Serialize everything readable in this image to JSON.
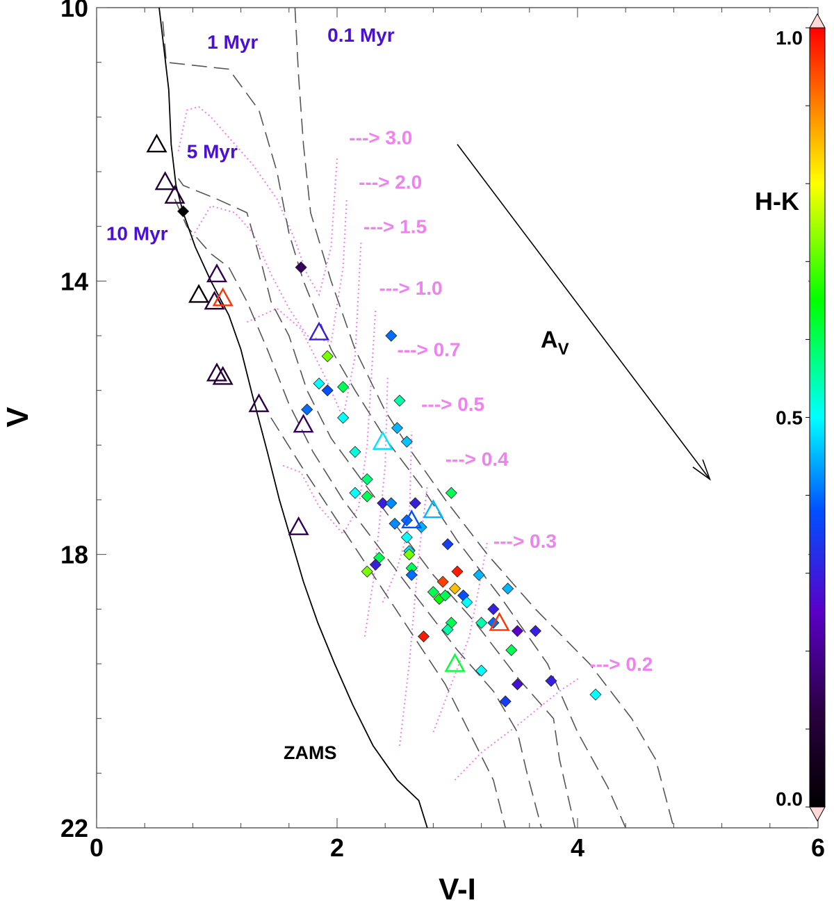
{
  "chart_data": {
    "type": "scatter",
    "title": "",
    "xlabel": "V-I",
    "ylabel": "V",
    "xlim": [
      0,
      6
    ],
    "ylim": [
      22,
      10
    ],
    "x_ticks": [
      0,
      2,
      4,
      6
    ],
    "x_tick_labels": [
      "0",
      "2",
      "4",
      "6"
    ],
    "y_ticks": [
      10,
      14,
      18,
      22
    ],
    "y_tick_labels": [
      "10",
      "14",
      "18",
      "22"
    ],
    "colorbar": {
      "label": "H-K",
      "range": [
        0.0,
        1.0
      ],
      "tick_labels": [
        "0.0",
        "0.5",
        "1.0"
      ],
      "ticks": [
        0.0,
        0.5,
        1.0
      ]
    },
    "zams_label": "ZAMS",
    "av_label": "A",
    "av_subscript": "V",
    "reddening_vector": {
      "from": [
        3.0,
        12.0
      ],
      "to": [
        5.1,
        16.9
      ]
    },
    "zams": [
      [
        0.52,
        10.0
      ],
      [
        0.6,
        11.2
      ],
      [
        0.62,
        12.0
      ],
      [
        0.66,
        12.6
      ],
      [
        0.72,
        13.0
      ],
      [
        0.82,
        13.5
      ],
      [
        0.95,
        14.0
      ],
      [
        1.1,
        14.5
      ],
      [
        1.2,
        15.0
      ],
      [
        1.3,
        15.7
      ],
      [
        1.42,
        16.5
      ],
      [
        1.52,
        17.2
      ],
      [
        1.62,
        17.8
      ],
      [
        1.72,
        18.4
      ],
      [
        1.84,
        19.0
      ],
      [
        1.98,
        19.6
      ],
      [
        2.13,
        20.2
      ],
      [
        2.3,
        20.8
      ],
      [
        2.5,
        21.3
      ],
      [
        2.68,
        21.6
      ],
      [
        2.75,
        22.0
      ]
    ],
    "isochrones": [
      {
        "label": "0.1 Myr",
        "points": [
          [
            1.65,
            10.0
          ],
          [
            1.68,
            11.0
          ],
          [
            1.72,
            12.0
          ],
          [
            1.78,
            13.0
          ],
          [
            1.95,
            14.0
          ],
          [
            2.15,
            15.0
          ],
          [
            2.4,
            15.9
          ],
          [
            2.62,
            16.5
          ],
          [
            2.9,
            17.2
          ],
          [
            3.25,
            18.0
          ],
          [
            3.65,
            18.8
          ],
          [
            4.1,
            19.6
          ],
          [
            4.45,
            20.4
          ],
          [
            4.65,
            21.0
          ],
          [
            4.8,
            22.0
          ]
        ]
      },
      {
        "label": "1 Myr",
        "points": [
          [
            0.55,
            10.2
          ],
          [
            0.58,
            10.8
          ],
          [
            1.1,
            10.9
          ],
          [
            1.35,
            11.5
          ],
          [
            1.5,
            12.4
          ],
          [
            1.6,
            13.3
          ],
          [
            1.72,
            14.0
          ],
          [
            1.95,
            15.0
          ],
          [
            2.15,
            15.6
          ],
          [
            2.4,
            16.3
          ],
          [
            2.7,
            17.0
          ],
          [
            3.0,
            17.8
          ],
          [
            3.35,
            18.6
          ],
          [
            3.75,
            19.6
          ],
          [
            4.0,
            20.6
          ],
          [
            4.25,
            21.4
          ],
          [
            4.4,
            22.0
          ]
        ]
      },
      {
        "label": "5 Myr",
        "points": [
          [
            0.68,
            12.5
          ],
          [
            0.72,
            12.6
          ],
          [
            1.0,
            12.8
          ],
          [
            1.25,
            13.0
          ],
          [
            1.38,
            13.8
          ],
          [
            1.45,
            14.3
          ],
          [
            1.6,
            14.8
          ],
          [
            1.75,
            15.6
          ],
          [
            1.95,
            16.3
          ],
          [
            2.2,
            16.9
          ],
          [
            2.5,
            17.6
          ],
          [
            2.8,
            18.3
          ],
          [
            3.15,
            19.0
          ],
          [
            3.5,
            19.8
          ],
          [
            3.8,
            20.4
          ],
          [
            3.85,
            21.0
          ],
          [
            3.98,
            22.0
          ]
        ]
      },
      {
        "label": "10 Myr",
        "points": [
          [
            0.65,
            12.8
          ],
          [
            0.75,
            13.2
          ],
          [
            0.95,
            13.6
          ],
          [
            1.1,
            13.8
          ],
          [
            1.25,
            14.3
          ],
          [
            1.42,
            15.0
          ],
          [
            1.6,
            15.8
          ],
          [
            1.8,
            16.5
          ],
          [
            2.05,
            17.2
          ],
          [
            2.35,
            17.9
          ],
          [
            2.65,
            18.6
          ],
          [
            3.0,
            19.4
          ],
          [
            3.3,
            20.0
          ],
          [
            3.5,
            20.6
          ],
          [
            3.58,
            21.2
          ],
          [
            3.7,
            22.0
          ]
        ]
      },
      {
        "label": "",
        "points": [
          [
            1.45,
            16.0
          ],
          [
            1.7,
            16.7
          ],
          [
            2.0,
            17.5
          ],
          [
            2.3,
            18.3
          ],
          [
            2.6,
            19.1
          ],
          [
            2.9,
            19.9
          ],
          [
            3.1,
            20.6
          ],
          [
            3.3,
            21.3
          ],
          [
            3.4,
            22.0
          ]
        ]
      }
    ],
    "isochrone_labels": [
      {
        "text": "0.1 Myr",
        "x": 1.92,
        "y": 10.5
      },
      {
        "text": "1 Myr",
        "x": 0.92,
        "y": 10.6
      },
      {
        "text": "5 Myr",
        "x": 0.75,
        "y": 12.2
      },
      {
        "text": "10 Myr",
        "x": 0.08,
        "y": 13.4
      }
    ],
    "mass_tracks": [
      {
        "label": "---> 3.0",
        "x": 2.1,
        "y": 12.0
      },
      {
        "label": "---> 2.0",
        "x": 2.18,
        "y": 12.65
      },
      {
        "label": "---> 1.5",
        "x": 2.22,
        "y": 13.3
      },
      {
        "label": "---> 1.0",
        "x": 2.35,
        "y": 14.2
      },
      {
        "label": "---> 0.7",
        "x": 2.5,
        "y": 15.1
      },
      {
        "label": "---> 0.5",
        "x": 2.7,
        "y": 15.9
      },
      {
        "label": "---> 0.4",
        "x": 2.9,
        "y": 16.7
      },
      {
        "label": "---> 0.3",
        "x": 3.3,
        "y": 17.9
      },
      {
        "label": "---> 0.2",
        "x": 4.1,
        "y": 19.7
      }
    ],
    "mass_track_lines": [
      [
        [
          0.68,
          12.1
        ],
        [
          0.75,
          11.5
        ],
        [
          0.85,
          11.45
        ],
        [
          0.95,
          11.6
        ],
        [
          1.1,
          11.9
        ],
        [
          1.3,
          12.3
        ],
        [
          1.5,
          12.8
        ],
        [
          1.65,
          13.4
        ],
        [
          1.75,
          13.9
        ],
        [
          1.85,
          14.2
        ],
        [
          1.95,
          13.5
        ],
        [
          2.0,
          12.2
        ]
      ],
      [
        [
          0.78,
          13.4
        ],
        [
          0.95,
          12.9
        ],
        [
          1.15,
          13.0
        ],
        [
          1.3,
          13.3
        ],
        [
          1.45,
          13.9
        ],
        [
          1.6,
          14.4
        ],
        [
          1.75,
          14.8
        ],
        [
          1.95,
          14.9
        ],
        [
          2.05,
          13.8
        ],
        [
          2.08,
          12.8
        ]
      ],
      [
        [
          1.25,
          14.6
        ],
        [
          1.5,
          14.4
        ],
        [
          1.7,
          14.7
        ],
        [
          1.9,
          15.4
        ],
        [
          2.05,
          16.0
        ],
        [
          2.15,
          15.1
        ],
        [
          2.2,
          13.4
        ]
      ],
      [
        [
          1.55,
          16.7
        ],
        [
          1.7,
          16.8
        ],
        [
          1.85,
          17.3
        ],
        [
          2.05,
          17.7
        ],
        [
          2.18,
          17.3
        ],
        [
          2.25,
          16.4
        ],
        [
          2.32,
          14.4
        ]
      ],
      [
        [
          2.23,
          19.2
        ],
        [
          2.3,
          18.4
        ],
        [
          2.35,
          17.6
        ],
        [
          2.4,
          16.7
        ],
        [
          2.42,
          15.4
        ]
      ],
      [
        [
          2.38,
          18.7
        ],
        [
          2.5,
          18.2
        ],
        [
          2.6,
          17.6
        ],
        [
          2.62,
          16.2
        ]
      ],
      [
        [
          2.52,
          20.8
        ],
        [
          2.6,
          19.6
        ],
        [
          2.68,
          18.0
        ],
        [
          2.75,
          17.0
        ]
      ],
      [
        [
          2.8,
          20.6
        ],
        [
          2.95,
          19.9
        ],
        [
          3.1,
          19.2
        ],
        [
          3.2,
          18.3
        ],
        [
          3.25,
          17.8
        ]
      ],
      [
        [
          2.98,
          21.3
        ],
        [
          3.2,
          20.9
        ],
        [
          3.5,
          20.5
        ],
        [
          3.85,
          20.0
        ],
        [
          4.02,
          19.8
        ]
      ]
    ],
    "diamonds": [
      [
        0.72,
        12.98,
        0.0
      ],
      [
        1.7,
        13.8,
        0.15
      ],
      [
        2.45,
        14.8,
        0.4
      ],
      [
        1.92,
        15.1,
        0.72
      ],
      [
        1.85,
        15.5,
        0.5
      ],
      [
        1.92,
        15.6,
        0.38
      ],
      [
        2.05,
        15.55,
        0.6
      ],
      [
        2.52,
        15.75,
        0.55
      ],
      [
        1.75,
        15.88,
        0.4
      ],
      [
        2.05,
        16.0,
        0.5
      ],
      [
        2.5,
        16.15,
        0.45
      ],
      [
        2.58,
        16.35,
        0.46
      ],
      [
        2.15,
        16.5,
        0.52
      ],
      [
        2.25,
        16.9,
        0.58
      ],
      [
        2.15,
        17.1,
        0.5
      ],
      [
        2.25,
        17.15,
        0.6
      ],
      [
        2.38,
        17.25,
        0.3
      ],
      [
        2.45,
        17.25,
        0.42
      ],
      [
        2.65,
        17.25,
        0.3
      ],
      [
        2.95,
        17.1,
        0.6
      ],
      [
        2.48,
        17.55,
        0.42
      ],
      [
        2.58,
        17.5,
        0.4
      ],
      [
        2.7,
        17.6,
        0.45
      ],
      [
        2.58,
        17.75,
        0.5
      ],
      [
        2.6,
        17.95,
        0.48
      ],
      [
        2.92,
        17.85,
        0.35
      ],
      [
        2.35,
        18.05,
        0.6
      ],
      [
        2.6,
        18.0,
        0.72
      ],
      [
        2.32,
        18.15,
        0.3
      ],
      [
        2.25,
        18.25,
        0.72
      ],
      [
        2.62,
        18.2,
        0.6
      ],
      [
        2.62,
        18.3,
        0.4
      ],
      [
        2.88,
        18.4,
        0.95
      ],
      [
        3.0,
        18.25,
        0.98
      ],
      [
        3.18,
        18.3,
        0.45
      ],
      [
        2.98,
        18.5,
        0.85
      ],
      [
        2.8,
        18.55,
        0.6
      ],
      [
        2.85,
        18.65,
        0.65
      ],
      [
        2.9,
        18.6,
        0.6
      ],
      [
        3.05,
        18.6,
        0.38
      ],
      [
        3.08,
        18.7,
        0.5
      ],
      [
        3.42,
        18.5,
        0.45
      ],
      [
        3.3,
        18.8,
        0.3
      ],
      [
        3.2,
        19.0,
        0.55
      ],
      [
        3.3,
        19.0,
        0.4
      ],
      [
        2.95,
        19.0,
        0.6
      ],
      [
        2.92,
        19.1,
        0.55
      ],
      [
        2.72,
        19.2,
        0.98
      ],
      [
        3.5,
        19.12,
        0.25
      ],
      [
        3.65,
        19.12,
        0.3
      ],
      [
        3.45,
        19.4,
        0.6
      ],
      [
        3.2,
        19.7,
        0.5
      ],
      [
        3.5,
        19.9,
        0.28
      ],
      [
        3.78,
        19.85,
        0.3
      ],
      [
        3.4,
        20.15,
        0.35
      ],
      [
        4.15,
        20.05,
        0.5
      ]
    ],
    "triangles": [
      [
        0.5,
        12.0,
        0.02
      ],
      [
        0.57,
        12.55,
        0.1
      ],
      [
        0.65,
        12.75,
        0.1
      ],
      [
        1.0,
        13.9,
        0.14
      ],
      [
        0.85,
        14.2,
        0.02
      ],
      [
        0.98,
        14.3,
        0.12
      ],
      [
        1.05,
        14.25,
        0.96
      ],
      [
        1.85,
        14.75,
        0.3
      ],
      [
        1.0,
        15.35,
        0.1
      ],
      [
        1.05,
        15.4,
        0.1
      ],
      [
        1.35,
        15.8,
        0.12
      ],
      [
        1.72,
        16.1,
        0.15
      ],
      [
        2.38,
        16.35,
        0.48
      ],
      [
        2.62,
        17.5,
        0.38
      ],
      [
        2.8,
        17.35,
        0.45
      ],
      [
        1.68,
        17.6,
        0.14
      ],
      [
        3.35,
        19.0,
        0.96
      ],
      [
        2.98,
        19.6,
        0.62
      ]
    ]
  }
}
